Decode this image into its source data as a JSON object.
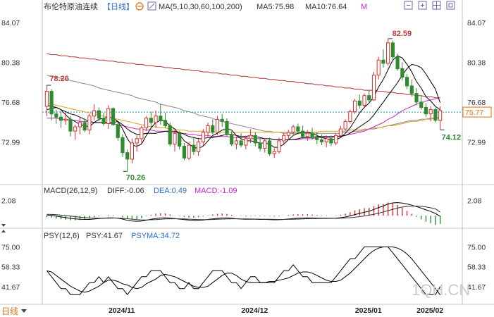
{
  "header": {
    "title": "布伦特原油连续",
    "period": "【日线】",
    "ma_params": "MA(5,10,30,60,100,200)",
    "ma5_label": "MA5:75.98",
    "ma10_label": "MA10:76.64",
    "m_button": "M"
  },
  "macd_header": {
    "params": "MACD(26,12,9)",
    "diff_label": "DIFF:-0.06",
    "dea_label": "DEA:0.49",
    "macd_label": "MACD:-1.09"
  },
  "psy_header": {
    "params": "PSY(12,6)",
    "psy_label": "PSY:41.67",
    "psyma_label": "PSYMA:34.72"
  },
  "footer": {
    "period_button": "日线"
  },
  "watermark": "1QH.CN",
  "colors": {
    "up": "#d43030",
    "down": "#2e8b2e",
    "ma5": "#000000",
    "ma10": "#000000",
    "ma30": "#cc22cc",
    "ma60": "#e0a020",
    "ma100": "#888888",
    "ma200": "#b03030",
    "current_line": "#2090c0",
    "current_label_bg": "#ffffff",
    "current_label_text": "#e07010"
  },
  "chart_data": {
    "type": "candlestick",
    "price_axis": {
      "ticks_left": [
        "84.07",
        "80.38",
        "76.68",
        "72.99"
      ],
      "ticks_right": [
        "84.07",
        "80.38",
        "76.68",
        "72.99"
      ],
      "ylim": [
        69.3,
        85.0
      ]
    },
    "x_labels": [
      "2024/11",
      "2024/12",
      "2025/01",
      "2025/02"
    ],
    "current_price": 75.77,
    "annotations": {
      "high": "82.59",
      "low": "70.26",
      "left_high": "78.26",
      "recent_low": "74.12"
    },
    "candles": [
      [
        76.3,
        78.26,
        75.4,
        77.7
      ],
      [
        77.7,
        77.9,
        75.0,
        75.6
      ],
      [
        75.6,
        76.0,
        74.7,
        75.3
      ],
      [
        75.3,
        75.9,
        74.3,
        75.0
      ],
      [
        75.0,
        75.7,
        74.6,
        75.1
      ],
      [
        75.1,
        75.4,
        73.5,
        74.0
      ],
      [
        74.0,
        74.6,
        73.2,
        74.4
      ],
      [
        74.4,
        75.3,
        73.7,
        74.8
      ],
      [
        74.8,
        75.1,
        73.9,
        74.1
      ],
      [
        74.1,
        75.6,
        73.7,
        75.4
      ],
      [
        75.4,
        76.5,
        75.0,
        75.9
      ],
      [
        75.9,
        76.2,
        74.9,
        75.2
      ],
      [
        75.2,
        75.7,
        74.5,
        74.7
      ],
      [
        74.7,
        76.4,
        74.2,
        76.1
      ],
      [
        76.1,
        76.2,
        74.5,
        74.6
      ],
      [
        74.6,
        74.9,
        73.1,
        73.4
      ],
      [
        73.4,
        73.7,
        71.6,
        72.0
      ],
      [
        72.0,
        72.3,
        70.26,
        71.4
      ],
      [
        71.4,
        73.3,
        71.0,
        72.9
      ],
      [
        72.9,
        73.6,
        72.1,
        73.3
      ],
      [
        73.3,
        74.5,
        72.8,
        74.3
      ],
      [
        74.3,
        75.4,
        74.0,
        75.2
      ],
      [
        75.2,
        75.8,
        74.4,
        74.8
      ],
      [
        74.8,
        75.9,
        74.3,
        75.4
      ],
      [
        75.4,
        76.5,
        74.6,
        75.0
      ],
      [
        75.0,
        75.7,
        74.3,
        74.5
      ],
      [
        74.5,
        74.8,
        72.6,
        72.8
      ],
      [
        72.8,
        74.1,
        72.1,
        73.8
      ],
      [
        73.8,
        74.0,
        72.3,
        72.6
      ],
      [
        72.6,
        72.9,
        71.3,
        71.5
      ],
      [
        71.5,
        73.0,
        71.3,
        72.7
      ],
      [
        72.7,
        73.4,
        71.8,
        72.1
      ],
      [
        72.1,
        73.4,
        71.7,
        73.0
      ],
      [
        73.0,
        74.2,
        72.6,
        73.9
      ],
      [
        73.9,
        74.8,
        73.5,
        74.5
      ],
      [
        74.5,
        75.1,
        73.7,
        73.9
      ],
      [
        73.9,
        75.4,
        73.6,
        75.1
      ],
      [
        75.1,
        75.6,
        74.4,
        74.9
      ],
      [
        74.9,
        75.2,
        73.5,
        73.7
      ],
      [
        73.7,
        74.0,
        72.6,
        72.8
      ],
      [
        72.8,
        73.5,
        72.3,
        73.1
      ],
      [
        73.1,
        73.8,
        72.5,
        72.7
      ],
      [
        72.7,
        73.6,
        72.3,
        73.3
      ],
      [
        73.3,
        74.2,
        72.9,
        73.6
      ],
      [
        73.6,
        73.9,
        72.6,
        72.9
      ],
      [
        72.9,
        73.4,
        72.1,
        72.4
      ],
      [
        72.4,
        73.3,
        72.0,
        73.1
      ],
      [
        73.1,
        73.4,
        71.7,
        71.9
      ],
      [
        71.9,
        72.4,
        71.5,
        72.1
      ],
      [
        72.1,
        73.4,
        71.9,
        73.1
      ],
      [
        73.1,
        73.8,
        72.7,
        73.6
      ],
      [
        73.6,
        74.1,
        73.3,
        73.9
      ],
      [
        73.9,
        74.6,
        73.6,
        74.4
      ],
      [
        74.4,
        74.7,
        73.7,
        74.0
      ],
      [
        74.0,
        74.5,
        73.3,
        73.5
      ],
      [
        73.5,
        74.1,
        73.1,
        73.8
      ],
      [
        73.8,
        74.3,
        73.2,
        73.4
      ],
      [
        73.4,
        73.9,
        72.8,
        73.2
      ],
      [
        73.2,
        73.7,
        72.7,
        73.0
      ],
      [
        73.0,
        73.6,
        72.5,
        73.3
      ],
      [
        73.3,
        73.6,
        72.6,
        72.9
      ],
      [
        72.9,
        73.8,
        72.7,
        73.6
      ],
      [
        73.6,
        74.5,
        73.4,
        74.2
      ],
      [
        74.2,
        75.1,
        74.0,
        74.9
      ],
      [
        74.9,
        76.0,
        74.7,
        75.8
      ],
      [
        75.8,
        77.0,
        75.6,
        76.8
      ],
      [
        76.8,
        77.4,
        76.1,
        76.4
      ],
      [
        76.4,
        77.5,
        76.2,
        77.3
      ],
      [
        77.3,
        77.8,
        76.6,
        76.9
      ],
      [
        76.9,
        79.5,
        76.8,
        79.2
      ],
      [
        79.2,
        80.9,
        78.8,
        80.6
      ],
      [
        80.6,
        81.6,
        79.9,
        80.3
      ],
      [
        80.3,
        82.59,
        80.1,
        82.2
      ],
      [
        82.2,
        82.4,
        80.7,
        80.9
      ],
      [
        80.9,
        81.2,
        79.6,
        79.8
      ],
      [
        79.8,
        80.4,
        78.7,
        79.0
      ],
      [
        79.0,
        79.3,
        77.9,
        78.2
      ],
      [
        78.2,
        78.8,
        77.2,
        77.5
      ],
      [
        77.5,
        78.0,
        76.4,
        76.7
      ],
      [
        76.7,
        77.3,
        76.0,
        76.2
      ],
      [
        76.2,
        76.6,
        75.3,
        75.6
      ],
      [
        75.6,
        76.3,
        74.9,
        76.0
      ],
      [
        76.0,
        76.2,
        74.8,
        75.0
      ],
      [
        75.0,
        76.3,
        74.12,
        75.9
      ]
    ],
    "series": {
      "ma5": [
        76.0,
        76.1,
        76.2,
        76.0,
        75.5,
        75.1,
        74.9,
        74.6,
        74.5,
        74.4,
        74.8,
        75.1,
        75.2,
        75.3,
        75.2,
        74.9,
        74.2,
        73.3,
        72.7,
        72.6,
        72.8,
        73.6,
        74.3,
        74.8,
        75.0,
        74.9,
        74.5,
        74.2,
        73.7,
        73.1,
        72.8,
        72.5,
        72.4,
        72.6,
        73.1,
        73.6,
        73.8,
        74.1,
        74.2,
        74.1,
        73.6,
        73.3,
        73.1,
        73.1,
        73.0,
        72.9,
        72.9,
        72.8,
        72.5,
        72.5,
        72.8,
        73.2,
        73.6,
        73.8,
        73.9,
        73.9,
        73.8,
        73.6,
        73.4,
        73.3,
        73.2,
        73.2,
        73.4,
        73.8,
        74.3,
        75.0,
        75.7,
        76.2,
        76.6,
        77.2,
        78.1,
        78.8,
        79.7,
        80.6,
        81.0,
        80.8,
        80.2,
        79.5,
        78.6,
        78.0,
        77.2,
        76.8,
        76.3,
        75.98
      ],
      "ma10": [
        76.4,
        76.3,
        76.2,
        76.0,
        75.8,
        75.6,
        75.5,
        75.3,
        75.1,
        74.9,
        74.8,
        74.8,
        74.8,
        74.8,
        74.8,
        74.9,
        74.6,
        74.2,
        73.9,
        73.7,
        73.7,
        73.8,
        73.8,
        73.8,
        73.9,
        74.0,
        74.0,
        74.0,
        73.9,
        73.7,
        73.5,
        73.4,
        73.3,
        73.3,
        73.4,
        73.4,
        73.5,
        73.6,
        73.7,
        73.7,
        73.6,
        73.5,
        73.5,
        73.6,
        73.5,
        73.4,
        73.3,
        73.3,
        73.2,
        73.2,
        73.2,
        73.2,
        73.2,
        73.3,
        73.4,
        73.4,
        73.4,
        73.5,
        73.5,
        73.5,
        73.5,
        73.5,
        73.5,
        73.6,
        73.8,
        74.1,
        74.4,
        74.7,
        75.0,
        75.5,
        76.1,
        76.7,
        77.3,
        77.9,
        78.5,
        79.2,
        79.8,
        80.2,
        80.1,
        79.9,
        79.3,
        78.6,
        77.9,
        76.64
      ],
      "ma30": [
        75.2,
        75.2,
        75.2,
        75.1,
        75.1,
        75.0,
        75.0,
        74.9,
        74.9,
        74.9,
        74.8,
        74.8,
        74.8,
        74.7,
        74.7,
        74.6,
        74.5,
        74.4,
        74.3,
        74.2,
        74.2,
        74.1,
        74.1,
        74.0,
        74.0,
        74.0,
        73.9,
        73.9,
        73.8,
        73.8,
        73.7,
        73.7,
        73.6,
        73.6,
        73.6,
        73.5,
        73.5,
        73.5,
        73.5,
        73.4,
        73.4,
        73.4,
        73.4,
        73.3,
        73.3,
        73.3,
        73.3,
        73.3,
        73.2,
        73.2,
        73.2,
        73.2,
        73.2,
        73.2,
        73.3,
        73.3,
        73.3,
        73.4,
        73.4,
        73.4,
        73.4,
        73.5,
        73.5,
        73.6,
        73.7,
        73.8,
        73.9,
        74.0,
        74.2,
        74.4,
        74.6,
        74.8,
        75.1,
        75.3,
        75.6,
        75.9,
        76.1,
        76.3,
        76.5,
        76.6,
        76.8,
        76.9,
        77.0,
        77.1
      ],
      "ma60": [
        76.6,
        76.5,
        76.4,
        76.3,
        76.2,
        76.1,
        76.0,
        75.9,
        75.8,
        75.7,
        75.6,
        75.5,
        75.4,
        75.3,
        75.2,
        75.1,
        75.0,
        74.9,
        74.8,
        74.7,
        74.6,
        74.5,
        74.4,
        74.4,
        74.3,
        74.3,
        74.2,
        74.2,
        74.1,
        74.1,
        74.0,
        74.0,
        74.0,
        74.0,
        73.9,
        73.9,
        73.9,
        73.9,
        73.9,
        73.9,
        73.9,
        73.9,
        73.9,
        73.9,
        73.9,
        73.9,
        73.9,
        73.9,
        73.9,
        73.9,
        73.9,
        73.9,
        73.9,
        73.9,
        73.9,
        73.9,
        73.9,
        73.9,
        74.0,
        74.0,
        74.0,
        74.0,
        74.0,
        74.0,
        74.1,
        74.1,
        74.1,
        74.2,
        74.2,
        74.3,
        74.3,
        74.4,
        74.5,
        74.5,
        74.6,
        74.7,
        74.8,
        74.9,
        74.9,
        75.0,
        75.1,
        75.1,
        75.2,
        75.2
      ],
      "ma100": [
        79.2,
        79.1,
        79.0,
        78.9,
        78.8,
        78.7,
        78.6,
        78.5,
        78.4,
        78.3,
        78.2,
        78.0,
        77.9,
        77.8,
        77.7,
        77.6,
        77.5,
        77.4,
        77.3,
        77.1,
        77.0,
        76.9,
        76.8,
        76.7,
        76.5,
        76.4,
        76.3,
        76.2,
        76.1,
        75.9,
        75.8,
        75.7,
        75.5,
        75.4,
        75.3,
        75.2,
        75.0,
        74.9,
        74.8,
        74.7,
        74.6,
        74.5,
        74.4,
        74.3,
        74.2,
        74.1,
        74.0,
        74.0,
        73.9,
        73.9,
        73.8,
        73.8,
        73.8,
        73.8,
        73.8,
        73.8,
        73.8,
        73.8,
        73.8,
        73.8,
        73.8,
        73.8,
        73.8,
        73.9,
        73.9,
        74.0,
        74.0,
        74.1,
        74.2,
        74.2,
        74.3,
        74.4,
        74.5,
        74.6,
        74.7,
        74.8,
        74.9,
        75.0,
        75.0,
        75.1,
        75.1,
        75.2,
        75.2,
        75.3
      ],
      "ma200": [
        81.2,
        81.1,
        81.1,
        81.0,
        81.0,
        80.9,
        80.9,
        80.8,
        80.8,
        80.7,
        80.7,
        80.6,
        80.6,
        80.5,
        80.5,
        80.4,
        80.4,
        80.3,
        80.3,
        80.2,
        80.2,
        80.1,
        80.1,
        80.0,
        80.0,
        79.9,
        79.9,
        79.8,
        79.8,
        79.7,
        79.7,
        79.6,
        79.6,
        79.5,
        79.5,
        79.4,
        79.4,
        79.3,
        79.3,
        79.2,
        79.2,
        79.1,
        79.1,
        79.0,
        79.0,
        78.9,
        78.9,
        78.8,
        78.8,
        78.7,
        78.7,
        78.6,
        78.6,
        78.5,
        78.5,
        78.4,
        78.4,
        78.3,
        78.3,
        78.2,
        78.2,
        78.1,
        78.1,
        78.0,
        78.0,
        77.9,
        77.9,
        77.8,
        77.8,
        77.8,
        77.7,
        77.7,
        77.6,
        77.6,
        77.5,
        77.5,
        77.4,
        77.4,
        77.3,
        77.3,
        77.2,
        77.2,
        77.1,
        77.1
      ]
    },
    "macd": {
      "ylim": [
        -1.5,
        2.7
      ],
      "tick": "2.08",
      "diff": [
        0.1,
        0.05,
        -0.05,
        -0.15,
        -0.25,
        -0.35,
        -0.42,
        -0.48,
        -0.5,
        -0.5,
        -0.44,
        -0.38,
        -0.33,
        -0.28,
        -0.28,
        -0.33,
        -0.45,
        -0.62,
        -0.72,
        -0.75,
        -0.72,
        -0.6,
        -0.48,
        -0.38,
        -0.3,
        -0.28,
        -0.32,
        -0.38,
        -0.45,
        -0.52,
        -0.58,
        -0.62,
        -0.62,
        -0.58,
        -0.5,
        -0.42,
        -0.35,
        -0.3,
        -0.3,
        -0.34,
        -0.4,
        -0.45,
        -0.48,
        -0.48,
        -0.48,
        -0.5,
        -0.5,
        -0.52,
        -0.55,
        -0.54,
        -0.5,
        -0.44,
        -0.38,
        -0.34,
        -0.32,
        -0.3,
        -0.3,
        -0.32,
        -0.33,
        -0.33,
        -0.34,
        -0.32,
        -0.26,
        -0.16,
        -0.02,
        0.16,
        0.32,
        0.48,
        0.62,
        0.85,
        1.12,
        1.32,
        1.6,
        1.75,
        1.78,
        1.72,
        1.6,
        1.44,
        1.24,
        1.04,
        0.8,
        0.58,
        0.3,
        -0.06
      ],
      "dea": [
        0.2,
        0.18,
        0.14,
        0.08,
        0.02,
        -0.05,
        -0.12,
        -0.19,
        -0.25,
        -0.3,
        -0.33,
        -0.34,
        -0.34,
        -0.33,
        -0.32,
        -0.32,
        -0.35,
        -0.4,
        -0.46,
        -0.52,
        -0.56,
        -0.57,
        -0.55,
        -0.52,
        -0.47,
        -0.43,
        -0.41,
        -0.4,
        -0.41,
        -0.43,
        -0.46,
        -0.49,
        -0.52,
        -0.53,
        -0.53,
        -0.51,
        -0.48,
        -0.45,
        -0.42,
        -0.41,
        -0.41,
        -0.42,
        -0.43,
        -0.44,
        -0.45,
        -0.46,
        -0.47,
        -0.48,
        -0.49,
        -0.5,
        -0.5,
        -0.49,
        -0.47,
        -0.45,
        -0.42,
        -0.4,
        -0.38,
        -0.37,
        -0.36,
        -0.36,
        -0.35,
        -0.35,
        -0.33,
        -0.3,
        -0.26,
        -0.2,
        -0.12,
        -0.03,
        0.08,
        0.2,
        0.35,
        0.52,
        0.7,
        0.88,
        1.04,
        1.18,
        1.27,
        1.31,
        1.31,
        1.28,
        1.2,
        1.08,
        0.93,
        0.49
      ]
    },
    "psy": {
      "ylim": [
        28,
        80
      ],
      "ticks": [
        "75.00",
        "58.33",
        "41.67"
      ],
      "psy": [
        55,
        50,
        45,
        40,
        40,
        35,
        35,
        35,
        40,
        45,
        45,
        50,
        45,
        50,
        45,
        40,
        40,
        35,
        40,
        45,
        50,
        50,
        55,
        55,
        55,
        50,
        45,
        45,
        40,
        40,
        45,
        40,
        40,
        45,
        50,
        55,
        55,
        55,
        50,
        45,
        45,
        40,
        45,
        50,
        50,
        45,
        45,
        45,
        45,
        50,
        55,
        55,
        60,
        55,
        50,
        50,
        45,
        45,
        45,
        45,
        45,
        50,
        55,
        60,
        65,
        65,
        70,
        75,
        75,
        75,
        75,
        75,
        75,
        70,
        65,
        60,
        55,
        50,
        45,
        40,
        35,
        35,
        35,
        41.67
      ],
      "psyma": [
        55,
        54,
        51,
        48,
        45,
        42,
        40,
        38,
        37,
        38,
        40,
        42,
        45,
        47,
        47,
        46,
        44,
        43,
        41,
        40,
        41,
        44,
        46,
        48,
        51,
        52,
        51,
        50,
        48,
        46,
        44,
        42,
        41,
        41,
        42,
        45,
        48,
        51,
        53,
        53,
        51,
        48,
        46,
        45,
        45,
        45,
        45,
        46,
        46,
        47,
        48,
        49,
        51,
        53,
        54,
        54,
        53,
        51,
        49,
        47,
        46,
        46,
        47,
        50,
        53,
        57,
        61,
        65,
        69,
        72,
        74,
        75,
        75,
        75,
        74,
        72,
        69,
        65,
        60,
        55,
        50,
        45,
        40,
        34.72
      ]
    }
  }
}
